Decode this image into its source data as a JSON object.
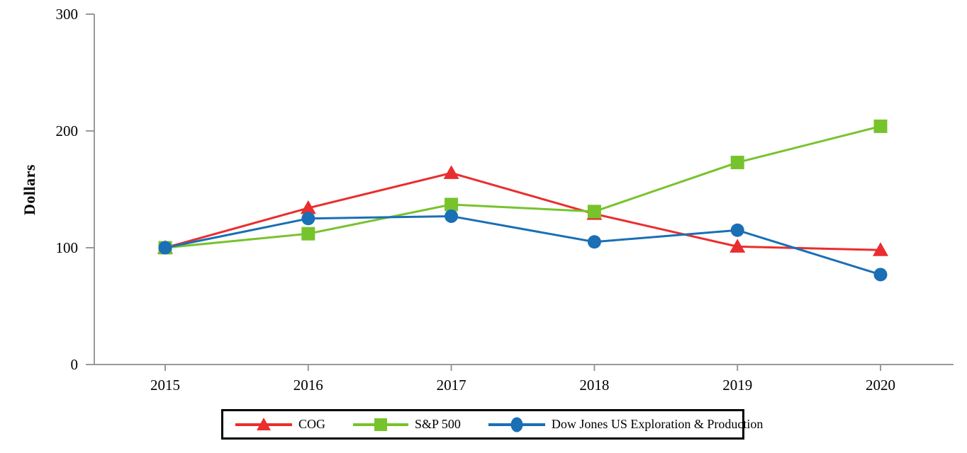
{
  "chart_data": {
    "type": "line",
    "title": "",
    "xlabel": "",
    "ylabel": "Dollars",
    "categories": [
      "2015",
      "2016",
      "2017",
      "2018",
      "2019",
      "2020"
    ],
    "ylim": [
      0,
      300
    ],
    "yticks": [
      0,
      100,
      200,
      300
    ],
    "grid": false,
    "legend_position": "bottom-boxed",
    "axis_color": "#999999",
    "text_color": "#000000",
    "series": [
      {
        "name": "COG",
        "marker": "triangle",
        "color": "#EA2D2E",
        "values": [
          100,
          134,
          164,
          129,
          101,
          98
        ]
      },
      {
        "name": "S&P 500",
        "marker": "square",
        "color": "#77C32C",
        "values": [
          100,
          112,
          137,
          131,
          173,
          204
        ]
      },
      {
        "name": "Dow Jones US Exploration & Production",
        "marker": "circle",
        "color": "#1A6FB5",
        "values": [
          100,
          125,
          127,
          105,
          115,
          77
        ]
      }
    ]
  }
}
